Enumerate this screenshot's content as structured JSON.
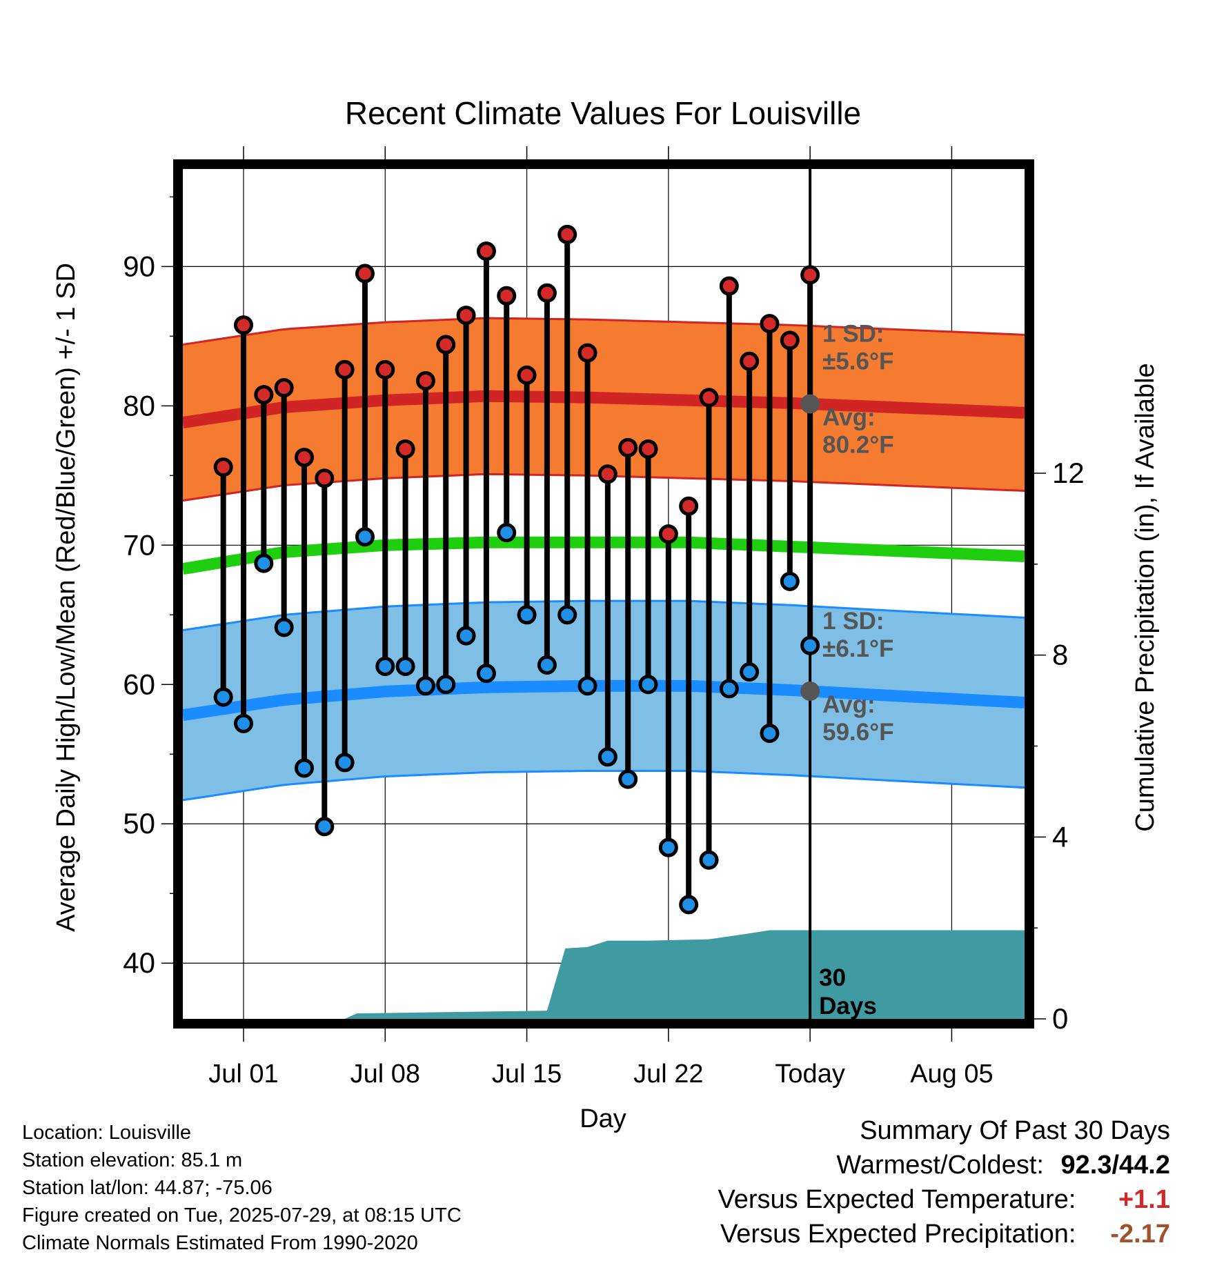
{
  "chart_data": {
    "type": "line",
    "title": "Recent Climate Values For Louisville",
    "xlabel": "Day",
    "ylabel": "Average Daily High/Low/Mean (Red/Blue/Green) +/- 1 SD",
    "ylabel_right": "Cumulative Precipitation (in), If Available",
    "ylim": [
      36,
      97
    ],
    "ylim_right": [
      0,
      12
    ],
    "x_ticks": [
      {
        "day": 3,
        "label": "Jul 01"
      },
      {
        "day": 10,
        "label": "Jul 08"
      },
      {
        "day": 17,
        "label": "Jul 15"
      },
      {
        "day": 24,
        "label": "Jul 22"
      },
      {
        "day": 31,
        "label": "Today"
      },
      {
        "day": 38,
        "label": "Aug 05"
      }
    ],
    "x_range_days": [
      0,
      41.6
    ],
    "y_ticks": [
      40,
      50,
      60,
      70,
      80,
      90
    ],
    "y_ticks_right": [
      0,
      4,
      8,
      12
    ],
    "grid": true,
    "today_day": 31,
    "observed_days": [
      2,
      3,
      4,
      5,
      6,
      7,
      8,
      9,
      10,
      11,
      12,
      13,
      14,
      15,
      16,
      17,
      18,
      19,
      20,
      21,
      22,
      23,
      24,
      25,
      26,
      27,
      28,
      29,
      30,
      31
    ],
    "daily_high": [
      75.6,
      85.8,
      80.8,
      81.3,
      76.3,
      74.8,
      82.6,
      89.5,
      82.6,
      76.9,
      81.8,
      84.4,
      86.5,
      91.1,
      87.9,
      82.2,
      88.1,
      92.3,
      83.8,
      75.1,
      77.0,
      76.9,
      70.8,
      72.8,
      80.6,
      88.6,
      83.2,
      85.9,
      84.7,
      89.4
    ],
    "daily_low": [
      59.1,
      57.2,
      68.7,
      64.1,
      54.0,
      49.8,
      54.4,
      70.6,
      61.3,
      61.3,
      59.9,
      60.0,
      63.5,
      60.8,
      70.9,
      65.0,
      61.4,
      65.0,
      59.9,
      54.8,
      53.2,
      60.0,
      48.3,
      44.2,
      47.4,
      59.7,
      60.9,
      56.5,
      67.4,
      62.8
    ],
    "normal_high": {
      "days": [
        0,
        5,
        10,
        15,
        20,
        25,
        30,
        35,
        41.6
      ],
      "mean": [
        78.8,
        79.9,
        80.4,
        80.7,
        80.6,
        80.4,
        80.2,
        79.9,
        79.5
      ],
      "sd": 5.6,
      "label_sd": "1 SD:",
      "label_sd_value": "±5.6°F",
      "label_avg": "Avg:",
      "label_avg_value": "80.2°F"
    },
    "normal_low": {
      "days": [
        0,
        5,
        10,
        15,
        20,
        25,
        30,
        35,
        41.6
      ],
      "mean": [
        57.8,
        58.9,
        59.5,
        59.8,
        59.9,
        59.9,
        59.6,
        59.2,
        58.7
      ],
      "sd": 6.1,
      "label_sd": "1 SD:",
      "label_sd_value": "±6.1°F",
      "label_avg": "Avg:",
      "label_avg_value": "59.6°F"
    },
    "normal_mean": {
      "days": [
        0,
        5,
        10,
        15,
        20,
        25,
        30,
        35,
        41.6
      ],
      "values": [
        68.3,
        69.5,
        70.0,
        70.2,
        70.2,
        70.2,
        69.9,
        69.6,
        69.2
      ]
    },
    "cumulative_precip": {
      "days": [
        0,
        8,
        8.6,
        18,
        18.9,
        20,
        21,
        23,
        26,
        28,
        29,
        41.6
      ],
      "values": [
        0,
        0,
        0.12,
        0.18,
        1.55,
        1.58,
        1.72,
        1.72,
        1.75,
        1.88,
        1.95,
        1.95
      ],
      "label_line1": "30",
      "label_line2": "Days"
    },
    "colors": {
      "high_marker": "#d42a2a",
      "low_marker": "#1f8fe8",
      "high_band": "#f47b30",
      "high_line": "#d12424",
      "low_band": "#7fbfe6",
      "low_line": "#1a8cff",
      "mean_line": "#1fce0f",
      "precip_fill": "#3f9aa2",
      "annotation": "#555555"
    }
  },
  "info": {
    "location": "Location: Louisville",
    "elevation": "Station elevation: 85.1 m",
    "latlon": "Station lat/lon: 44.87; -75.06",
    "created": "Figure created on Tue, 2025-07-29, at 08:15 UTC",
    "normals": "Climate Normals Estimated From 1990-2020"
  },
  "summary": {
    "heading": "Summary Of Past 30 Days",
    "warm_cold_label": "Warmest/Coldest:",
    "warm_cold_value": "92.3/44.2",
    "temp_label": "Versus Expected Temperature:",
    "temp_value": "+1.1",
    "precip_label": "Versus Expected Precipitation:",
    "precip_value": "-2.17"
  }
}
